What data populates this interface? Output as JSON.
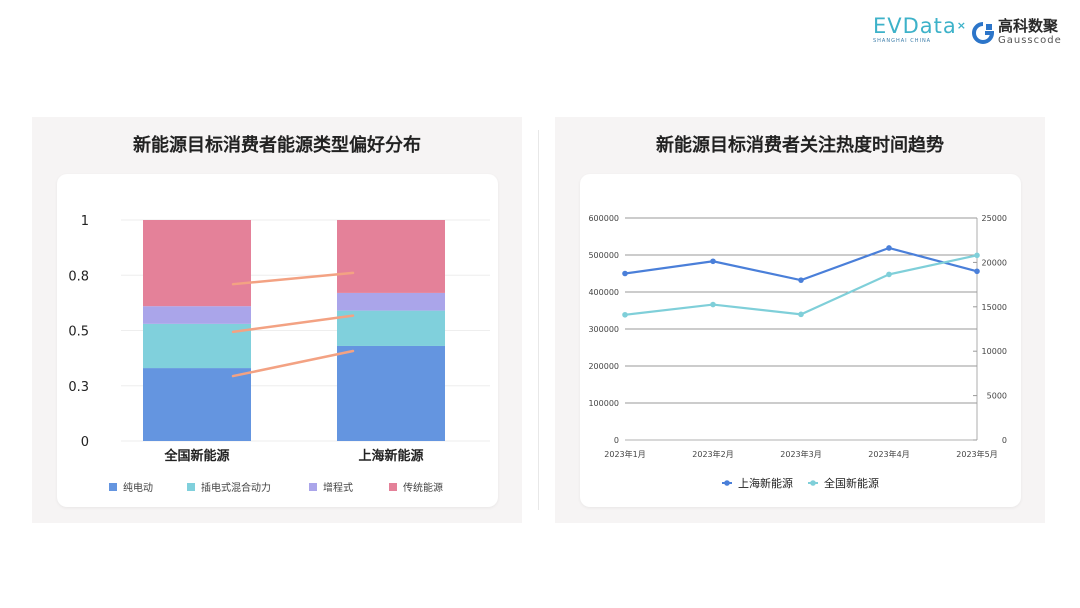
{
  "logos": {
    "evdata": "EVData",
    "evdata_sub": "SHANGHAI CHINA",
    "gauss_cn": "高科数聚",
    "gauss_en": "Gausscode"
  },
  "colors": {
    "pure_ev": "#6495e0",
    "phev": "#80d0dc",
    "erev": "#aaa5ea",
    "traditional": "#e48199",
    "shanghai": "#4a7fd9",
    "national": "#7fcfd9",
    "connector": "#f3a283"
  },
  "chart_data": [
    {
      "type": "bar",
      "stacked": true,
      "title": "新能源目标消费者能源类型偏好分布",
      "categories": [
        "全国新能源",
        "上海新能源"
      ],
      "yticks": [
        "0",
        "0.3",
        "0.5",
        "0.8",
        "1"
      ],
      "ylim": [
        0,
        1
      ],
      "grid": true,
      "legend": "bottom",
      "series": [
        {
          "name": "纯电动",
          "values": [
            0.33,
            0.43
          ]
        },
        {
          "name": "插电式混合动力",
          "values": [
            0.2,
            0.16
          ]
        },
        {
          "name": "增程式",
          "values": [
            0.08,
            0.08
          ]
        },
        {
          "name": "传统能源",
          "values": [
            0.39,
            0.33
          ]
        }
      ]
    },
    {
      "type": "line",
      "title": "新能源目标消费者关注热度时间趋势",
      "x": [
        "2023年1月",
        "2023年2月",
        "2023年3月",
        "2023年4月",
        "2023年5月"
      ],
      "ylim_left": [
        0,
        600000
      ],
      "yticks_left": [
        "0",
        "100000",
        "200000",
        "300000",
        "400000",
        "500000",
        "600000"
      ],
      "ylim_right": [
        0,
        25000
      ],
      "yticks_right": [
        "0",
        "5000",
        "10000",
        "15000",
        "20000",
        "25000"
      ],
      "grid": true,
      "legend": "bottom",
      "series": [
        {
          "name": "上海新能源",
          "axis": "left",
          "values": [
            450000,
            483000,
            432000,
            519000,
            456000
          ]
        },
        {
          "name": "全国新能源",
          "axis": "right",
          "values": [
            14100,
            15250,
            14150,
            18650,
            20800
          ]
        }
      ]
    }
  ]
}
